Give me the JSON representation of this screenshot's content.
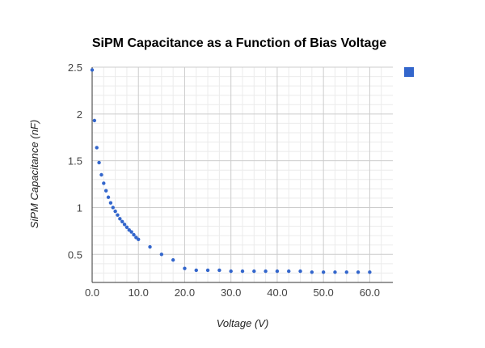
{
  "chart_data": {
    "type": "scatter",
    "title": "SiPM Capacitance as a Function of Bias Voltage",
    "xlabel": "Voltage (V)",
    "ylabel": "SiPM Capacitance (nF)",
    "xlim": [
      0,
      65
    ],
    "ylim": [
      0.2,
      2.5
    ],
    "x_ticks": [
      0,
      10,
      20,
      30,
      40,
      50,
      60
    ],
    "x_tick_labels": [
      "0.0",
      "10.0",
      "20.0",
      "30.0",
      "40.0",
      "50.0",
      "60.0"
    ],
    "y_ticks": [
      0.5,
      1,
      1.5,
      2,
      2.5
    ],
    "y_tick_labels": [
      "0.5",
      "1",
      "1.5",
      "2",
      "2.5"
    ],
    "grid": true,
    "legend": "right",
    "series": [
      {
        "name": "",
        "color": "#3366cc",
        "points": [
          [
            0.0,
            2.47
          ],
          [
            0.5,
            1.93
          ],
          [
            1.0,
            1.64
          ],
          [
            1.5,
            1.48
          ],
          [
            2.0,
            1.35
          ],
          [
            2.5,
            1.26
          ],
          [
            3.0,
            1.18
          ],
          [
            3.5,
            1.11
          ],
          [
            4.0,
            1.05
          ],
          [
            4.5,
            1.0
          ],
          [
            5.0,
            0.96
          ],
          [
            5.5,
            0.92
          ],
          [
            6.0,
            0.88
          ],
          [
            6.5,
            0.85
          ],
          [
            7.0,
            0.82
          ],
          [
            7.5,
            0.79
          ],
          [
            8.0,
            0.76
          ],
          [
            8.5,
            0.74
          ],
          [
            9.0,
            0.71
          ],
          [
            9.5,
            0.68
          ],
          [
            10.0,
            0.66
          ],
          [
            12.5,
            0.58
          ],
          [
            15.0,
            0.5
          ],
          [
            17.5,
            0.44
          ],
          [
            20.0,
            0.35
          ],
          [
            22.5,
            0.33
          ],
          [
            25.0,
            0.33
          ],
          [
            27.5,
            0.33
          ],
          [
            30.0,
            0.32
          ],
          [
            32.5,
            0.32
          ],
          [
            35.0,
            0.32
          ],
          [
            37.5,
            0.32
          ],
          [
            40.0,
            0.32
          ],
          [
            42.5,
            0.32
          ],
          [
            45.0,
            0.32
          ],
          [
            47.5,
            0.31
          ],
          [
            50.0,
            0.31
          ],
          [
            52.5,
            0.31
          ],
          [
            55.0,
            0.31
          ],
          [
            57.5,
            0.31
          ],
          [
            60.0,
            0.31
          ]
        ]
      }
    ]
  }
}
